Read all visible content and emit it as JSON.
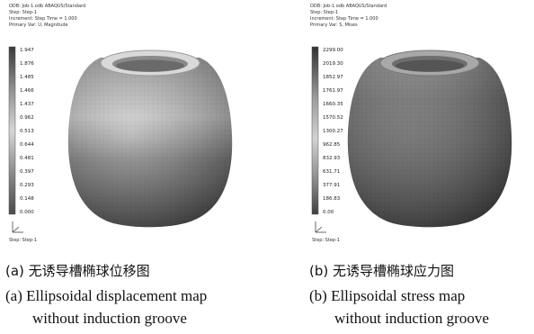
{
  "figures": [
    {
      "id": "a",
      "caption_zh": "(a) 无诱导槽椭球位移图",
      "caption_en_line1": "(a) Ellipsoidal displacement map",
      "caption_en_line2": "without induction groove",
      "legend_values": [
        "1.947",
        "1.876",
        "1.485",
        "1.466",
        "1.437",
        "0.962",
        "0.513",
        "0.644",
        "0.481",
        "0.397",
        "0.293",
        "0.148",
        "0.000"
      ],
      "header_lines": [
        "ODB: Job-1.odb  ABAQUS/Standard",
        "Step: Step-1",
        "Increment: Step Time = 1.000",
        "Primary Var: U, Magnitude"
      ],
      "footer_text": "Step: Step-1"
    },
    {
      "id": "b",
      "caption_zh": "(b) 无诱导槽椭球应力图",
      "caption_en_line1": "(b) Ellipsoidal stress map",
      "caption_en_line2": "without induction groove",
      "legend_values": [
        "2299.00",
        "2019.30",
        "1852.97",
        "1761.97",
        "1660.35",
        "1570.52",
        "1300.27",
        "962.85",
        "832.93",
        "631.71",
        "377.91",
        "186.83",
        "0.00"
      ],
      "header_lines": [
        "ODB: Job-1.odb  ABAQUS/Standard",
        "Step: Step-1",
        "Increment: Step Time = 1.000",
        "Primary Var: S, Mises"
      ],
      "footer_text": "Step: Step-1"
    }
  ]
}
